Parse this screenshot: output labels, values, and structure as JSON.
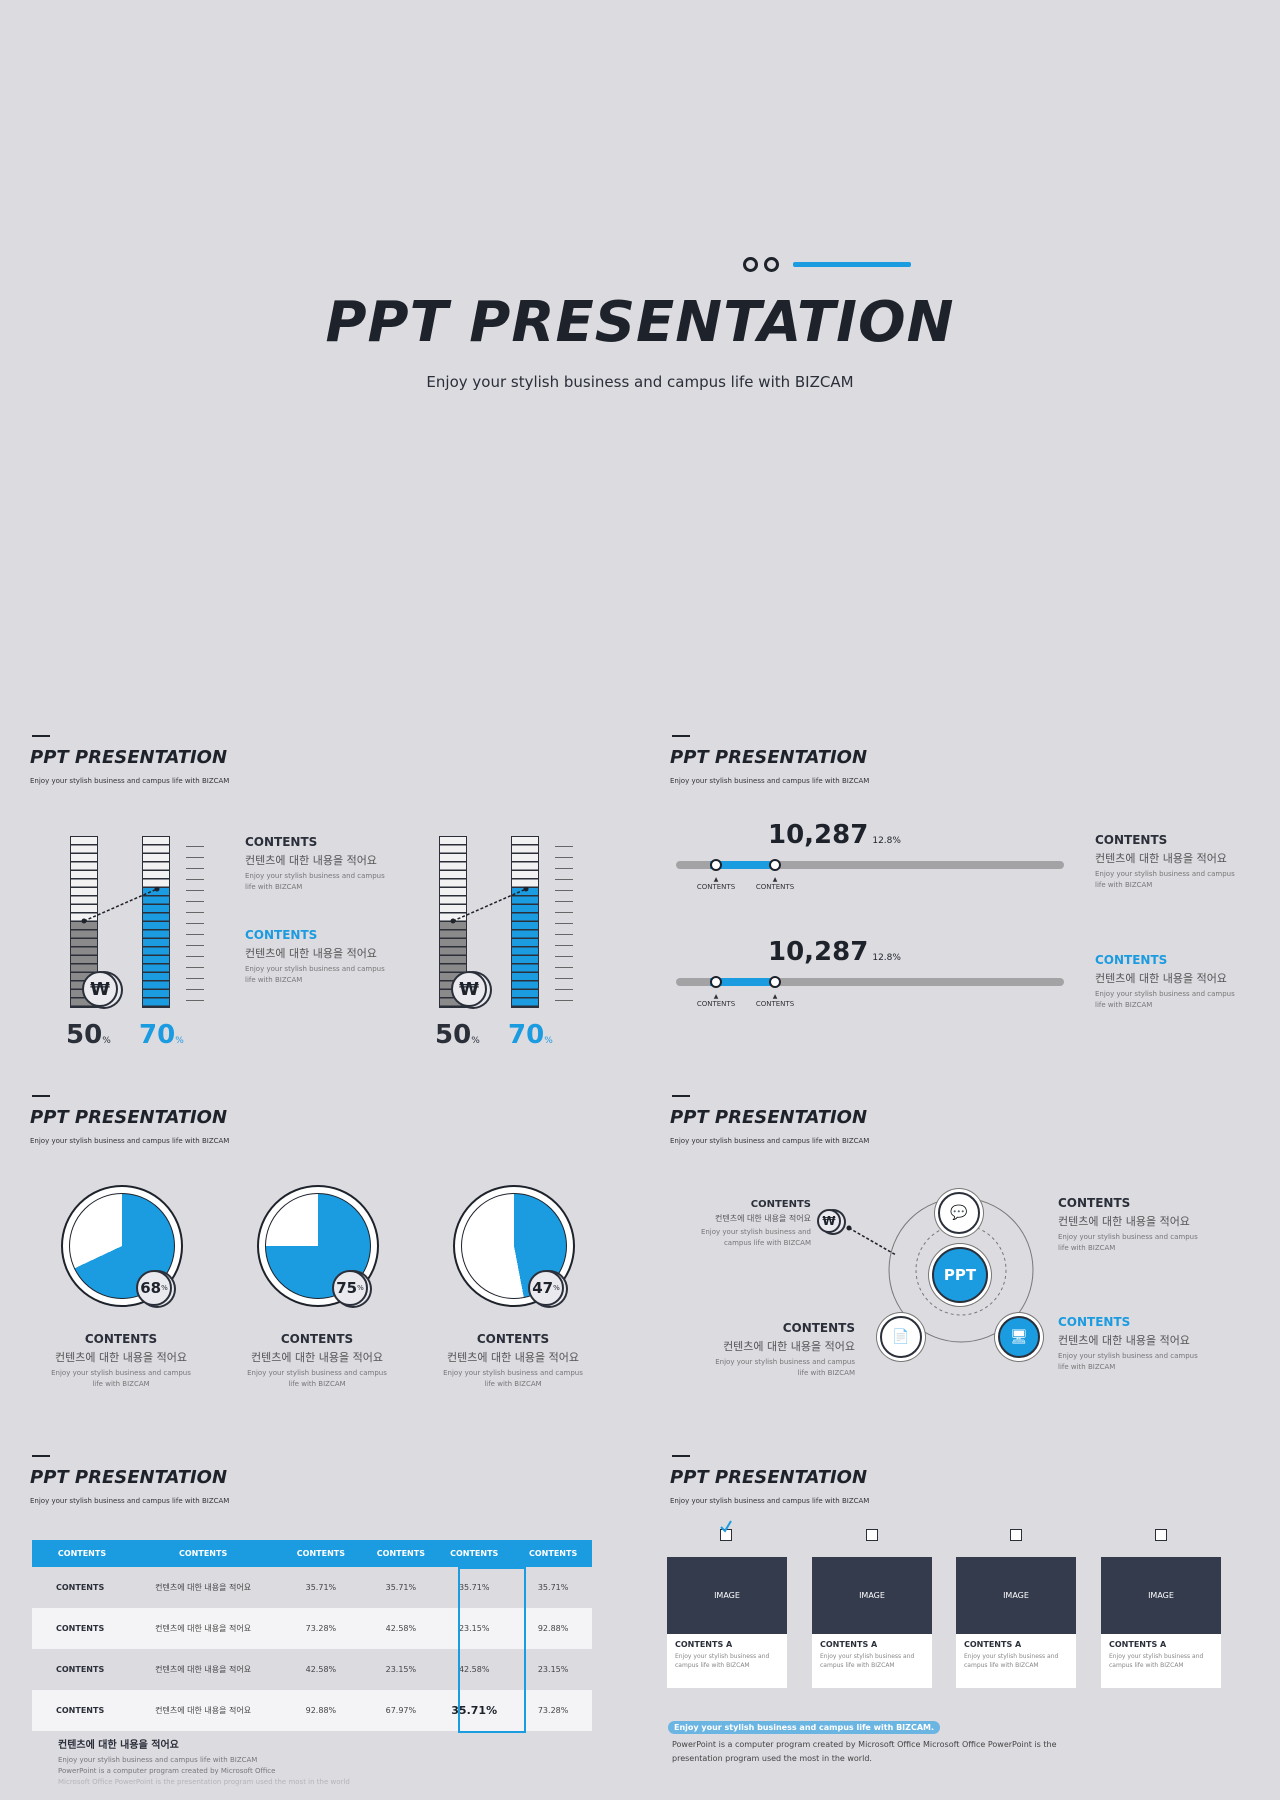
{
  "hero": {
    "title": "PPT PRESENTATION",
    "subtitle": "Enjoy your stylish business and campus life with BIZCAM"
  },
  "slide_common": {
    "title": "PPT PRESENTATION",
    "subtitle": "Enjoy your stylish business and campus life with BIZCAM"
  },
  "common": {
    "contents": "CONTENTS",
    "korean": "컨텐츠에 대한 내용을 적어요",
    "desc": "Enjoy your stylish business and campus life with BIZCAM",
    "won": "₩"
  },
  "thermo_slide": {
    "left_value": "50",
    "right_value": "70",
    "unit": "%",
    "left_fraction": 0.5,
    "right_fraction": 0.7
  },
  "slider_slide": {
    "value": "10,287",
    "change": "12.8%",
    "markers": [
      "CONTENTS",
      "CONTENTS"
    ]
  },
  "pie_slide": {
    "pies": [
      {
        "value": "68",
        "fraction": 0.68
      },
      {
        "value": "75",
        "fraction": 0.75
      },
      {
        "value": "47",
        "fraction": 0.47
      }
    ],
    "unit": "%"
  },
  "cycle_slide": {
    "center": "PPT"
  },
  "table_slide": {
    "headers": [
      "CONTENTS",
      "CONTENTS",
      "CONTENTS",
      "CONTENTS",
      "CONTENTS",
      "CONTENTS"
    ],
    "rows": [
      [
        "CONTENTS",
        "컨텐츠에 대한 내용을 적어요",
        "35.71%",
        "35.71%",
        "35.71%",
        "35.71%"
      ],
      [
        "CONTENTS",
        "컨텐츠에 대한 내용을 적어요",
        "73.28%",
        "42.58%",
        "23.15%",
        "92.88%"
      ],
      [
        "CONTENTS",
        "컨텐츠에 대한 내용을 적어요",
        "42.58%",
        "23.15%",
        "42.58%",
        "23.15%"
      ],
      [
        "CONTENTS",
        "컨텐츠에 대한 내용을 적어요",
        "92.88%",
        "67.97%",
        "35.71%",
        "73.28%"
      ]
    ],
    "note_title": "컨텐츠에 대한 내용을 적어요",
    "note_lines": [
      "Enjoy your stylish business and campus life with BIZCAM",
      "PowerPoint is a computer program created by Microsoft Office",
      "Microsoft Office PowerPoint is the presentation program used the most in the world"
    ]
  },
  "image_slide": {
    "cards": [
      {
        "image": "IMAGE",
        "title": "CONTENTS A",
        "desc": "Enjoy your stylish business and campus life with BIZCAM",
        "checked": true
      },
      {
        "image": "IMAGE",
        "title": "CONTENTS A",
        "desc": "Enjoy your stylish business and campus life with BIZCAM",
        "checked": false
      },
      {
        "image": "IMAGE",
        "title": "CONTENTS A",
        "desc": "Enjoy your stylish business and campus life with BIZCAM",
        "checked": false
      },
      {
        "image": "IMAGE",
        "title": "CONTENTS A",
        "desc": "Enjoy your stylish business and campus life with BIZCAM",
        "checked": false
      }
    ],
    "highlight": "Enjoy your stylish business and campus life with BIZCAM.",
    "body_lines": [
      "PowerPoint is a computer program created by Microsoft Office Microsoft Office PowerPoint is the",
      "presentation program used the most in the world."
    ]
  },
  "colors": {
    "background": "#dcdbe0",
    "accent": "#1b9be0",
    "dark": "#1d222b",
    "image_box": "#333b4c"
  }
}
